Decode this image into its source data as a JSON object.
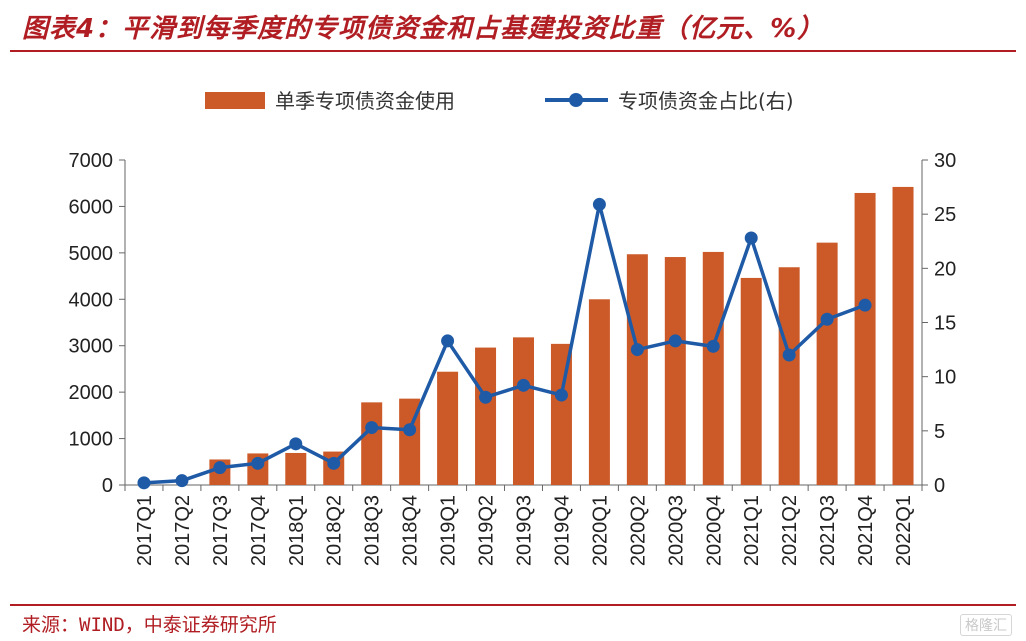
{
  "title": "图表4：平滑到每季度的专项债资金和占基建投资比重（亿元、%）",
  "source": "来源：WIND，中泰证券研究所",
  "watermark": "格隆汇",
  "colors": {
    "bar": "#cc5a28",
    "line": "#1f5aa6",
    "accent": "#b01e23"
  },
  "chart_data": {
    "type": "bar+line",
    "categories": [
      "2017Q1",
      "2017Q2",
      "2017Q3",
      "2017Q4",
      "2018Q1",
      "2018Q2",
      "2018Q3",
      "2018Q4",
      "2019Q1",
      "2019Q2",
      "2019Q3",
      "2019Q4",
      "2020Q1",
      "2020Q2",
      "2020Q3",
      "2020Q4",
      "2021Q1",
      "2021Q2",
      "2021Q3",
      "2021Q4",
      "2022Q1"
    ],
    "series": [
      {
        "name": "单季专项债资金使用",
        "type": "bar",
        "axis": "left",
        "values": [
          0,
          0,
          550,
          680,
          690,
          720,
          1780,
          1860,
          2440,
          2960,
          3180,
          3040,
          4000,
          4970,
          4910,
          5020,
          4460,
          4690,
          5220,
          6290,
          6420
        ]
      },
      {
        "name": "专项债资金占比(右)",
        "type": "line",
        "axis": "right",
        "values": [
          0.2,
          0.4,
          1.6,
          2.0,
          3.8,
          2.0,
          5.3,
          5.1,
          13.3,
          8.1,
          9.2,
          8.3,
          25.9,
          12.5,
          13.3,
          12.8,
          22.8,
          12.0,
          15.3,
          16.6,
          null
        ]
      }
    ],
    "y_left": {
      "min": 0,
      "max": 7000,
      "ticks": [
        "0",
        "1000",
        "2000",
        "3000",
        "4000",
        "5000",
        "6000",
        "7000"
      ]
    },
    "y_right": {
      "min": 0,
      "max": 30,
      "ticks": [
        "0",
        "5",
        "10",
        "15",
        "20",
        "25",
        "30"
      ]
    },
    "legend_position": "top-center",
    "grid": false
  }
}
